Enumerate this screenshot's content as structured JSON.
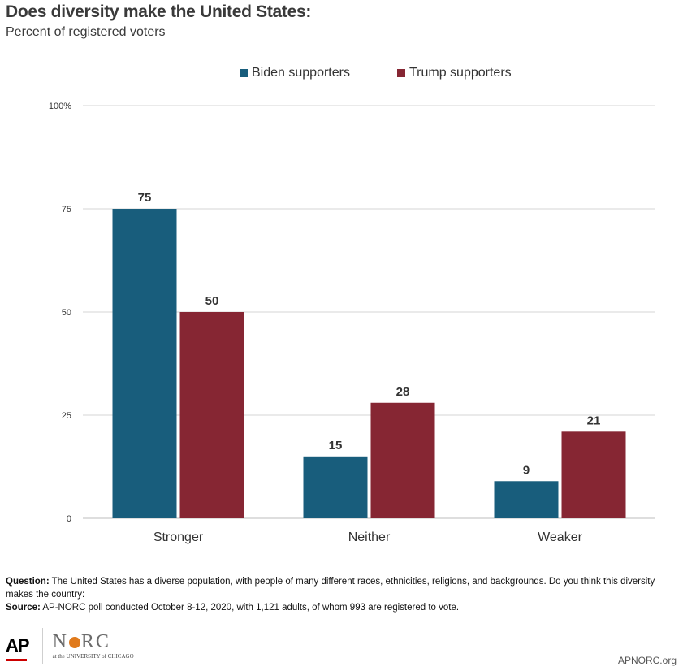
{
  "header": {
    "title": "Does diversity make the United States:",
    "subtitle": "Percent of registered voters"
  },
  "colors": {
    "biden": "#185d7c",
    "trump": "#862633"
  },
  "chart_data": {
    "type": "bar",
    "categories": [
      "Stronger",
      "Neither",
      "Weaker"
    ],
    "series": [
      {
        "name": "Biden supporters",
        "values": [
          75,
          15,
          9
        ],
        "color": "#185d7c"
      },
      {
        "name": "Trump supporters",
        "values": [
          50,
          28,
          21
        ],
        "color": "#862633"
      }
    ],
    "ylim": [
      0,
      100
    ],
    "yticks": [
      0,
      25,
      50,
      75,
      100
    ],
    "ytick_labels": [
      "0",
      "25",
      "50",
      "75",
      "100%"
    ],
    "grid": true,
    "legend": "top"
  },
  "footnote": {
    "question_label": "Question:",
    "question_text": " The United States has a diverse population, with people of many different races, ethnicities, religions, and backgrounds.  Do you think this diversity makes the country:",
    "source_label": "Source:",
    "source_text": " AP-NORC poll conducted October 8-12, 2020, with 1,121 adults, of whom 993 are registered to vote."
  },
  "logos": {
    "ap": "AP",
    "norc_left": "N",
    "norc_right": "RC",
    "norc_sub": "at the UNIVERSITY of CHICAGO"
  },
  "site": "APNORC.org"
}
